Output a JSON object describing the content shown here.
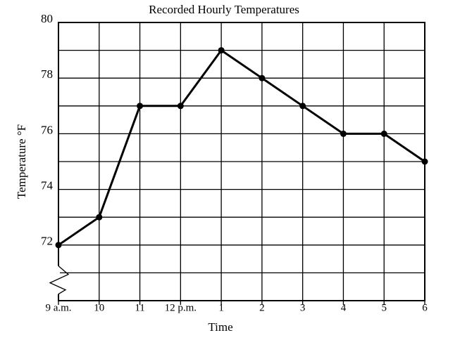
{
  "chart_data": {
    "type": "line",
    "title": "Recorded Hourly Temperatures",
    "x_label": "Time",
    "y_label": "Temperature °F",
    "categories": [
      "9 a.m.",
      "10",
      "11",
      "12 p.m.",
      "1",
      "2",
      "3",
      "4",
      "5",
      "6"
    ],
    "values": [
      72,
      73,
      77,
      77,
      79,
      78,
      77,
      76,
      76,
      75
    ],
    "color": "#000000",
    "ylim": [
      70,
      80
    ],
    "yticks": [
      72,
      74,
      76,
      78,
      80
    ],
    "minor_yticks": [
      71,
      73,
      75,
      77,
      79
    ],
    "grid": true
  }
}
